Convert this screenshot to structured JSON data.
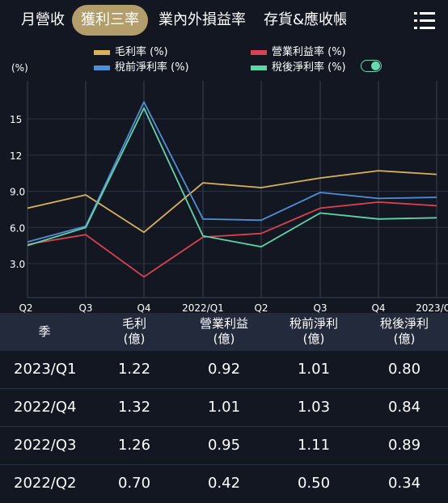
{
  "tabs": [
    {
      "label": "月營收"
    },
    {
      "label": "獲利三率"
    },
    {
      "label": "業內外損益率"
    },
    {
      "label": "存貨&應收帳"
    }
  ],
  "active_tab": "獲利三率",
  "chart_data": {
    "type": "line",
    "ylabel": "(%)",
    "x": [
      "Q2",
      "Q3",
      "Q4",
      "2022/Q1",
      "Q2",
      "Q3",
      "Q4",
      "2023/Q1"
    ],
    "y_ticks": [
      "15",
      "12",
      "9.0",
      "6.0",
      "3.0"
    ],
    "ylim": [
      0,
      17
    ],
    "grid": true,
    "legend_position": "top",
    "series": [
      {
        "name": "毛利率 (%)",
        "color": "#d9b25a",
        "values": [
          7.6,
          8.7,
          5.6,
          9.7,
          9.3,
          10.1,
          10.7,
          10.4
        ]
      },
      {
        "name": "營業利益率 (%)",
        "color": "#d9434f",
        "values": [
          4.6,
          5.4,
          1.9,
          5.2,
          5.5,
          7.6,
          8.1,
          7.8
        ]
      },
      {
        "name": "稅前淨利率 (%)",
        "color": "#4f8fd6",
        "values": [
          4.8,
          6.1,
          16.4,
          6.7,
          6.6,
          8.9,
          8.4,
          8.5
        ]
      },
      {
        "name": "稅後淨利率 (%)",
        "color": "#5ed6aa",
        "values": [
          4.5,
          6.0,
          15.9,
          5.3,
          4.4,
          7.2,
          6.7,
          6.8
        ]
      }
    ]
  },
  "table": {
    "headers": [
      {
        "line1": "季",
        "line2": ""
      },
      {
        "line1": "毛利",
        "line2": "(億)"
      },
      {
        "line1": "營業利益",
        "line2": "(億)"
      },
      {
        "line1": "稅前淨利",
        "line2": "(億)"
      },
      {
        "line1": "稅後淨利",
        "line2": "(億)"
      }
    ],
    "rows": [
      {
        "q": "2023/Q1",
        "gross": "1.22",
        "op": "0.92",
        "pretax": "1.01",
        "net": "0.80"
      },
      {
        "q": "2022/Q4",
        "gross": "1.32",
        "op": "1.01",
        "pretax": "1.03",
        "net": "0.84"
      },
      {
        "q": "2022/Q3",
        "gross": "1.26",
        "op": "0.95",
        "pretax": "1.11",
        "net": "0.89"
      },
      {
        "q": "2022/Q2",
        "gross": "0.70",
        "op": "0.42",
        "pretax": "0.50",
        "net": "0.34"
      }
    ]
  }
}
